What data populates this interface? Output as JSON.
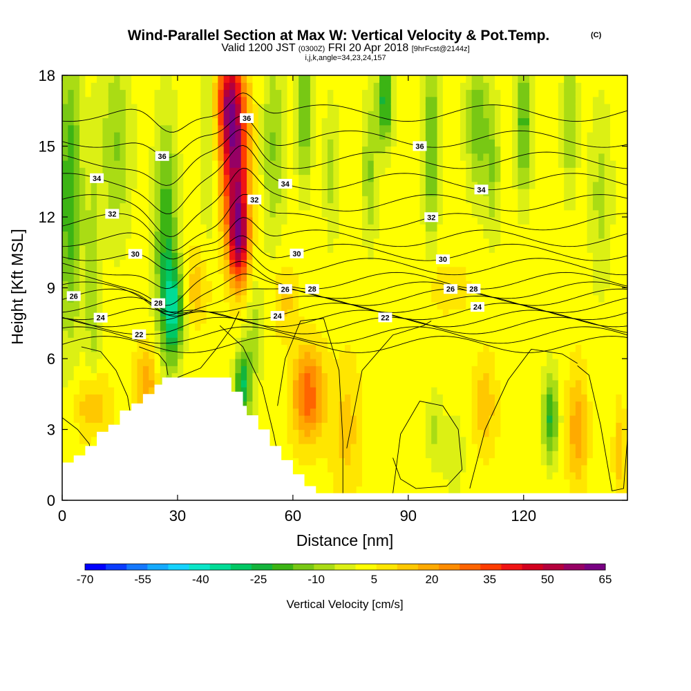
{
  "header": {
    "title_main": "Wind-Parallel Section at Max W: Vertical Velocity & Pot.Temp.",
    "title_mark": "(C)",
    "subtitle_prefix": "Valid 1200 JST",
    "subtitle_utc": "(0300Z)",
    "subtitle_date": "FRI 20 Apr 2018",
    "subtitle_fcst": "[9hrFcst@2144z]",
    "subtitle_params": "i,j,k,angle=34,23,24,157"
  },
  "chart_data": {
    "type": "heatmap",
    "xlabel": "Distance [nm]",
    "ylabel": "Height [Kft MSL]",
    "xlim": [
      0,
      147
    ],
    "ylim": [
      0,
      18
    ],
    "x_ticks": [
      0,
      30,
      60,
      90,
      120
    ],
    "y_ticks": [
      0,
      3,
      6,
      9,
      12,
      15,
      18
    ],
    "colorbar": {
      "title": "Vertical Velocity [cm/s]",
      "labels": [
        -70,
        -55,
        -40,
        -25,
        -10,
        5,
        20,
        35,
        50,
        65
      ],
      "colors": [
        "#0000ff",
        "#0a3cff",
        "#1478ff",
        "#14aaff",
        "#14d2ff",
        "#0ae6c8",
        "#00dc96",
        "#00c864",
        "#14b43c",
        "#3cb414",
        "#78c814",
        "#aadc14",
        "#dcf014",
        "#ffff00",
        "#ffe600",
        "#ffc800",
        "#ffaa00",
        "#ff8c00",
        "#ff6400",
        "#ff3c00",
        "#f01414",
        "#d2001e",
        "#b4003c",
        "#960064",
        "#780082"
      ]
    },
    "vertical_velocity_field": {
      "background": 3,
      "features": [
        {
          "x": 2,
          "z": 13,
          "sx": 3,
          "sz": 6,
          "w": -24
        },
        {
          "x": 8,
          "z": 9,
          "sx": 2,
          "sz": 6,
          "w": -12
        },
        {
          "x": 14,
          "z": 15,
          "sx": 4,
          "sz": 4,
          "w": -14
        },
        {
          "x": 27,
          "z": 11,
          "sx": 3,
          "sz": 5,
          "w": -24
        },
        {
          "x": 29,
          "z": 8,
          "sx": 2.5,
          "sz": 2,
          "w": -30
        },
        {
          "x": 45,
          "z": 14.5,
          "sx": 3.5,
          "sz": 3.5,
          "w": 50
        },
        {
          "x": 46,
          "z": 11,
          "sx": 2.5,
          "sz": 1.8,
          "w": 44
        },
        {
          "x": 43,
          "z": 17,
          "sx": 3,
          "sz": 2,
          "w": 32
        },
        {
          "x": 38,
          "z": 15,
          "sx": 2,
          "sz": 4,
          "w": -10
        },
        {
          "x": 50,
          "z": 7,
          "sx": 2,
          "sz": 2.5,
          "w": -10
        },
        {
          "x": 47,
          "z": 5,
          "sx": 2,
          "sz": 1.5,
          "w": -30
        },
        {
          "x": 55,
          "z": 15,
          "sx": 3,
          "sz": 4,
          "w": -14
        },
        {
          "x": 63,
          "z": 16.5,
          "sx": 2,
          "sz": 3,
          "w": -20
        },
        {
          "x": 70,
          "z": 14,
          "sx": 2,
          "sz": 3,
          "w": -10
        },
        {
          "x": 84,
          "z": 17,
          "sx": 2,
          "sz": 2,
          "w": -28
        },
        {
          "x": 80,
          "z": 14,
          "sx": 2,
          "sz": 3,
          "w": -14
        },
        {
          "x": 64,
          "z": 4.5,
          "sx": 4,
          "sz": 2,
          "w": 28
        },
        {
          "x": 74,
          "z": 3,
          "sx": 4,
          "sz": 3,
          "w": 10
        },
        {
          "x": 96,
          "z": 15,
          "sx": 2,
          "sz": 4,
          "w": -20
        },
        {
          "x": 108,
          "z": 16,
          "sx": 3,
          "sz": 3,
          "w": -18
        },
        {
          "x": 112,
          "z": 14,
          "sx": 2,
          "sz": 3,
          "w": -12
        },
        {
          "x": 120,
          "z": 16,
          "sx": 2,
          "sz": 3,
          "w": -22
        },
        {
          "x": 132,
          "z": 16,
          "sx": 2,
          "sz": 3,
          "w": -14
        },
        {
          "x": 140,
          "z": 13,
          "sx": 3,
          "sz": 4,
          "w": -10
        },
        {
          "x": 97,
          "z": 3,
          "sx": 2,
          "sz": 1.5,
          "w": -10
        },
        {
          "x": 102,
          "z": 2,
          "sx": 3,
          "sz": 2,
          "w": -6
        },
        {
          "x": 127,
          "z": 3.5,
          "sx": 2,
          "sz": 1.8,
          "w": -25
        },
        {
          "x": 134,
          "z": 3,
          "sx": 2.5,
          "sz": 2.5,
          "w": 18
        },
        {
          "x": 145,
          "z": 2,
          "sx": 1.5,
          "sz": 2,
          "w": 12
        },
        {
          "x": 110,
          "z": 4,
          "sx": 3,
          "sz": 2,
          "w": 12
        },
        {
          "x": 8,
          "z": 4,
          "sx": 4,
          "sz": 1.5,
          "w": 16
        },
        {
          "x": 22,
          "z": 5,
          "sx": 3,
          "sz": 1.5,
          "w": 18
        },
        {
          "x": 35,
          "z": 9,
          "sx": 3,
          "sz": 1.5,
          "w": 12
        },
        {
          "x": 58,
          "z": 8.5,
          "sx": 3,
          "sz": 1.5,
          "w": 10
        },
        {
          "x": 100,
          "z": 9,
          "sx": 6,
          "sz": 1,
          "w": 8
        }
      ]
    },
    "terrain": {
      "x": [
        0,
        3,
        3,
        6,
        6,
        9,
        9,
        12,
        12,
        15,
        15,
        18,
        18,
        21,
        21,
        24,
        24,
        26,
        26,
        44,
        44,
        47,
        47,
        48,
        48,
        51,
        51,
        54,
        54,
        57,
        57,
        60,
        60,
        63,
        63,
        66,
        66,
        147
      ],
      "z": [
        1.6,
        1.6,
        1.9,
        1.9,
        2.3,
        2.3,
        2.9,
        2.9,
        3.2,
        3.2,
        3.8,
        3.8,
        4.1,
        4.1,
        4.5,
        4.5,
        4.9,
        4.9,
        5.2,
        5.2,
        4.6,
        4.6,
        4.0,
        4.0,
        3.6,
        3.6,
        3.0,
        3.0,
        2.3,
        2.3,
        1.7,
        1.7,
        1.1,
        1.1,
        0.6,
        0.6,
        0.3,
        0.3
      ]
    },
    "pot_temp_contours": {
      "levels": [
        20,
        21,
        22,
        23,
        24,
        25,
        26,
        27,
        28,
        29,
        30,
        31,
        32,
        33,
        34,
        35,
        36,
        37
      ],
      "base_height": [
        6.6,
        7.0,
        7.4,
        7.7,
        8.0,
        8.3,
        8.6,
        8.9,
        9.3,
        9.9,
        10.5,
        11.1,
        11.8,
        12.6,
        13.5,
        14.4,
        15.3,
        16.4
      ],
      "labels": [
        {
          "x": 20,
          "level": 22
        },
        {
          "x": 84,
          "level": 22
        },
        {
          "x": 10,
          "level": 24
        },
        {
          "x": 56,
          "level": 24
        },
        {
          "x": 108,
          "level": 24
        },
        {
          "x": 3,
          "level": 26
        },
        {
          "x": 58,
          "level": 26
        },
        {
          "x": 101,
          "level": 26
        },
        {
          "x": 25,
          "level": 28
        },
        {
          "x": 65,
          "level": 28
        },
        {
          "x": 107,
          "level": 28
        },
        {
          "x": 19,
          "level": 30
        },
        {
          "x": 61,
          "level": 30
        },
        {
          "x": 99,
          "level": 30
        },
        {
          "x": 13,
          "level": 32
        },
        {
          "x": 50,
          "level": 32
        },
        {
          "x": 96,
          "level": 32
        },
        {
          "x": 9,
          "level": 34
        },
        {
          "x": 58,
          "level": 34
        },
        {
          "x": 109,
          "level": 34
        },
        {
          "x": 26,
          "level": 36
        },
        {
          "x": 48,
          "level": 36
        },
        {
          "x": 93,
          "level": 36
        }
      ]
    },
    "w_zero_contours": [
      {
        "x": [
          0,
          4,
          7,
          8,
          8,
          8
        ],
        "z": [
          3.5,
          3.0,
          2.4,
          1.6,
          1.2,
          1.2
        ]
      },
      {
        "x": [
          5,
          10,
          14,
          17,
          18
        ],
        "z": [
          6.5,
          6.3,
          5.5,
          4.4,
          3.4
        ]
      },
      {
        "x": [
          20,
          25,
          27,
          27.5
        ],
        "z": [
          6.5,
          6.2,
          5.8,
          5.3
        ]
      },
      {
        "x": [
          30,
          36,
          40,
          44,
          46
        ],
        "z": [
          5.2,
          5.6,
          6.4,
          7.3,
          8.0
        ]
      },
      {
        "x": [
          41,
          47,
          52,
          55,
          56
        ],
        "z": [
          7.4,
          6.5,
          4.8,
          2.8,
          2.0
        ]
      },
      {
        "x": [
          56,
          58,
          62,
          68,
          72,
          73,
          73
        ],
        "z": [
          4.0,
          6.0,
          7.6,
          7.7,
          5.5,
          2.5,
          0.3
        ]
      },
      {
        "x": [
          74,
          78,
          86,
          94,
          96
        ],
        "z": [
          2.2,
          5.5,
          7.0,
          7.4,
          7.6
        ]
      },
      {
        "x": [
          86,
          88,
          93,
          99,
          103,
          104,
          100,
          92,
          88,
          86
        ],
        "z": [
          0.3,
          2.8,
          4.2,
          4.0,
          3.0,
          1.3,
          0.6,
          0.5,
          0.9,
          1.8
        ]
      },
      {
        "x": [
          106,
          110,
          116,
          122,
          130,
          134
        ],
        "z": [
          0.5,
          3.0,
          5.1,
          6.4,
          6.2,
          5.8
        ]
      },
      {
        "x": [
          134,
          137,
          140,
          143,
          146,
          147
        ],
        "z": [
          5.7,
          5.3,
          3.2,
          0.4,
          0.5,
          2.6
        ]
      }
    ]
  }
}
